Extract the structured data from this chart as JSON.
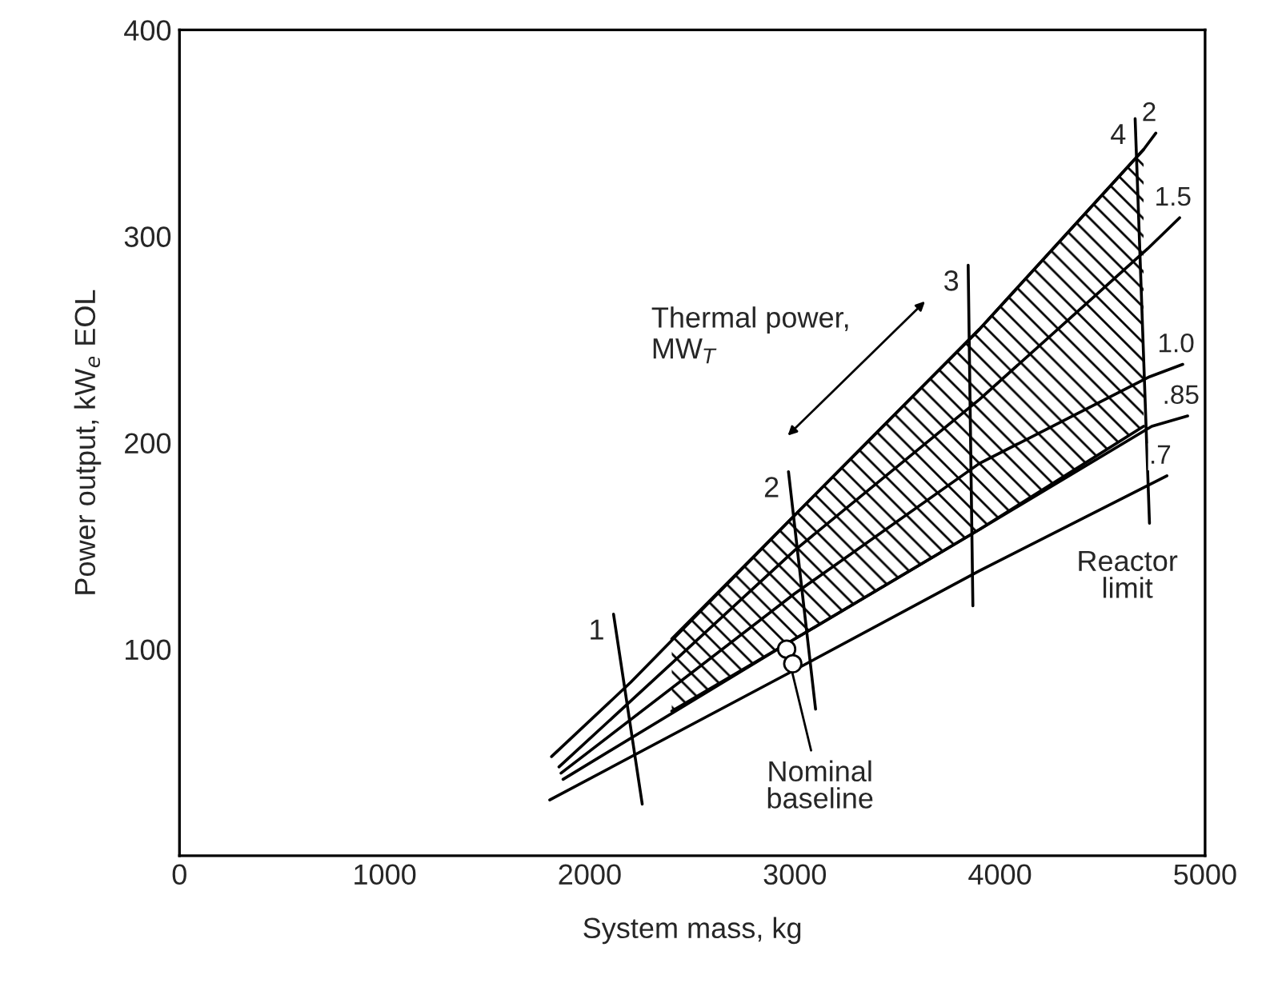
{
  "chart_data": {
    "type": "line",
    "xlabel": "System mass, kg",
    "ylabel": "Power output, kW$_{e}$ EOL",
    "xlim": [
      0,
      5000
    ],
    "ylim": [
      0,
      400
    ],
    "xticks": [
      0,
      1000,
      2000,
      3000,
      4000,
      5000
    ],
    "yticks": [
      {
        "value": 0,
        "label": null
      },
      100,
      200,
      300,
      400
    ],
    "grid": false,
    "legend": false,
    "marker": "none",
    "line_style": "solid",
    "series": [
      {
        "name": null,
        "color": "#000000",
        "x": [
          2400,
          3000,
          3900,
          4700
        ],
        "values": [
          105,
          165,
          255,
          342
        ],
        "lower": [
          70,
          105,
          158,
          208
        ],
        "upper": [
          105,
          165,
          255,
          342
        ]
      },
      {
        "name": "2",
        "color": "#000000",
        "x": [
          1814,
          2200,
          3000,
          3900,
          4700,
          4760
        ],
        "values": [
          48,
          84,
          165,
          255,
          342,
          350
        ]
      },
      {
        "name": "1.5",
        "color": "#000000",
        "x": [
          1850,
          3000,
          3900,
          4720,
          4876
        ],
        "values": [
          43,
          148,
          221,
          294,
          309
        ]
      },
      {
        "name": "1.0",
        "color": "#000000",
        "x": [
          1860,
          3000,
          3900,
          4730,
          4891
        ],
        "values": [
          40,
          127,
          190,
          232,
          238
        ]
      },
      {
        "name": ".85",
        "color": "#000000",
        "x": [
          1870,
          3000,
          3900,
          4740,
          4915
        ],
        "values": [
          37,
          105,
          158,
          208,
          213
        ]
      },
      {
        "name": ".7",
        "color": "#000000",
        "x": [
          1805,
          3000,
          3900,
          4814
        ],
        "values": [
          27,
          90,
          138,
          184
        ]
      },
      {
        "name": "1",
        "color": "#000000",
        "x": [
          2116,
          2256
        ],
        "values": [
          117,
          25
        ]
      },
      {
        "name": "2",
        "color": "#000000",
        "x": [
          2969,
          3101
        ],
        "values": [
          186,
          71
        ]
      },
      {
        "name": "3",
        "color": "#000000",
        "x": [
          3845,
          3868
        ],
        "values": [
          286,
          121
        ]
      },
      {
        "name": "4",
        "color": "#000000",
        "x": [
          4659,
          4729
        ],
        "values": [
          357,
          161
        ]
      },
      {
        "name": null,
        "type": "scatter",
        "color": "#000000",
        "marker": "circle",
        "x": [
          2960,
          2990
        ],
        "values": [
          100,
          93
        ]
      }
    ],
    "annotations": [
      "Thermal power,\nMW$_{T}$",
      {
        "text": "Nominal\nbaseline",
        "x": 2960,
        "y": 100
      },
      {
        "text": "Reactor\nlimit",
        "x": 4729,
        "y": 161
      }
    ]
  }
}
